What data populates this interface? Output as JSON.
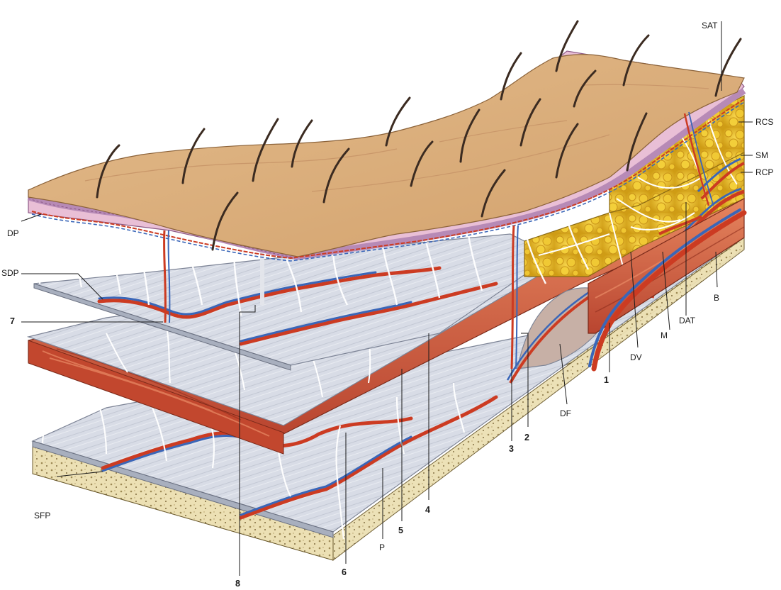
{
  "figure": {
    "description_free": true,
    "labels": {
      "SAT": "SAT",
      "RCS": "RCS",
      "SM": "SM",
      "RCP": "RCP",
      "B": "B",
      "DAT": "DAT",
      "M": "M",
      "DV": "DV",
      "DF": "DF",
      "DP": "DP",
      "SDP": "SDP",
      "SFP": "SFP",
      "P": "P",
      "n1": "1",
      "n2": "2",
      "n3": "3",
      "n4": "4",
      "n5": "5",
      "n6": "6",
      "n7": "7",
      "n8": "8"
    },
    "colors": {
      "skin_top": "#d9ae7c",
      "skin_top_light": "#e4bf8f",
      "epidermis": "#b78ab6",
      "dermis": "#e9bfd6",
      "fat": "#e7c02a",
      "fat_dark": "#c9971a",
      "fascia": "#d7dbe6",
      "fascia_shadow": "#aeb4c4",
      "muscle": "#c5513a",
      "muscle_light": "#e07757",
      "bone": "#ece0b4",
      "bone_speckle": "#8c7a48",
      "artery": "#cc3b22",
      "vein": "#3a66b8",
      "hair": "#3b2b21",
      "septa": "#ffffff"
    }
  }
}
